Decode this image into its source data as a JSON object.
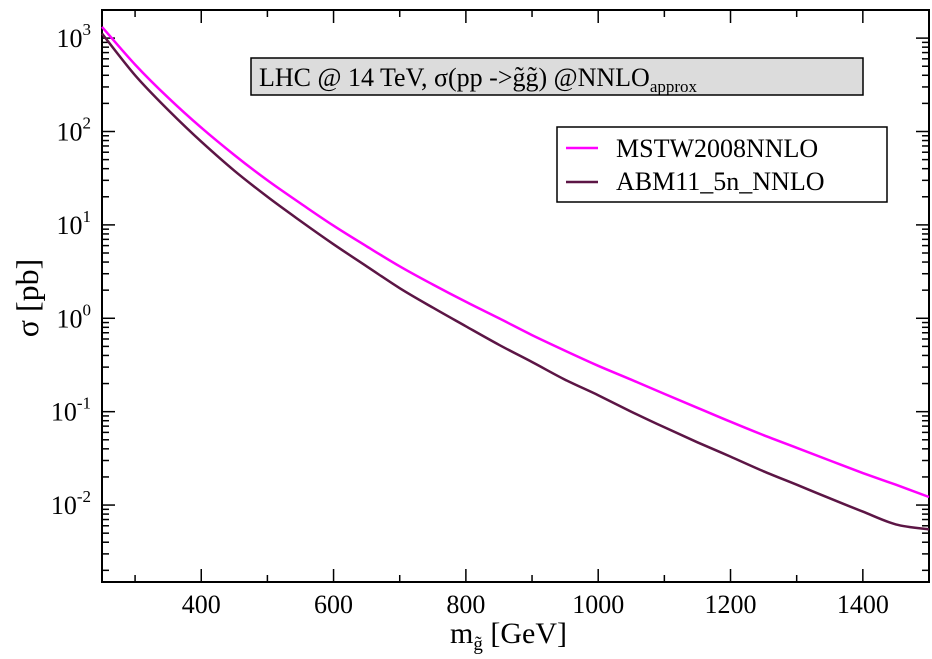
{
  "chart_data": {
    "type": "line",
    "title": "",
    "annotation": {
      "main": "LHC @ 14 TeV, σ(pp ->",
      "pair": "g̃g̃",
      "rest": ") @NNLO",
      "sub": "approx"
    },
    "xlabel": {
      "main": "m",
      "sub": "g̃",
      "unit": " [GeV]"
    },
    "ylabel": "σ [pb]",
    "xlim": [
      250,
      1500
    ],
    "ylim": [
      0.0015,
      2000
    ],
    "yscale": "log",
    "x_ticks": [
      400,
      600,
      800,
      1000,
      1200,
      1400
    ],
    "x_tick_labels": [
      "400",
      "600",
      "800",
      "1000",
      "1200",
      "1400"
    ],
    "y_ticks": [
      {
        "value": 1000,
        "base": "10",
        "exp": "3"
      },
      {
        "value": 100,
        "base": "10",
        "exp": "2"
      },
      {
        "value": 10,
        "base": "10",
        "exp": "1"
      },
      {
        "value": 1,
        "base": "10",
        "exp": "0"
      },
      {
        "value": 0.1,
        "base": "10",
        "exp": "-1"
      },
      {
        "value": 0.01,
        "base": "10",
        "exp": "-2"
      }
    ],
    "legend_position": "top-right",
    "grid": false,
    "series": [
      {
        "name": "MSTW2008NNLO",
        "color": "#ff00ff",
        "x": [
          250,
          300,
          350,
          400,
          450,
          500,
          550,
          600,
          650,
          700,
          750,
          800,
          850,
          900,
          950,
          1000,
          1050,
          1100,
          1150,
          1200,
          1250,
          1300,
          1350,
          1400,
          1450,
          1500
        ],
        "y": [
          1320,
          520,
          230,
          110,
          56,
          30,
          17,
          9.8,
          5.9,
          3.6,
          2.3,
          1.5,
          1.0,
          0.66,
          0.45,
          0.31,
          0.22,
          0.155,
          0.11,
          0.078,
          0.056,
          0.041,
          0.03,
          0.022,
          0.0165,
          0.0122
        ]
      },
      {
        "name": "ABM11_5n_NNLO",
        "color": "#5c1545",
        "x": [
          250,
          300,
          350,
          400,
          450,
          500,
          550,
          600,
          650,
          700,
          750,
          800,
          850,
          900,
          950,
          1000,
          1050,
          1100,
          1150,
          1200,
          1250,
          1300,
          1350,
          1400,
          1450,
          1500
        ],
        "y": [
          1120,
          400,
          170,
          78,
          38,
          20,
          11,
          6.2,
          3.6,
          2.1,
          1.3,
          0.82,
          0.52,
          0.34,
          0.22,
          0.15,
          0.1,
          0.068,
          0.047,
          0.033,
          0.023,
          0.0165,
          0.0118,
          0.0085,
          0.0062,
          0.0055
        ]
      }
    ]
  }
}
